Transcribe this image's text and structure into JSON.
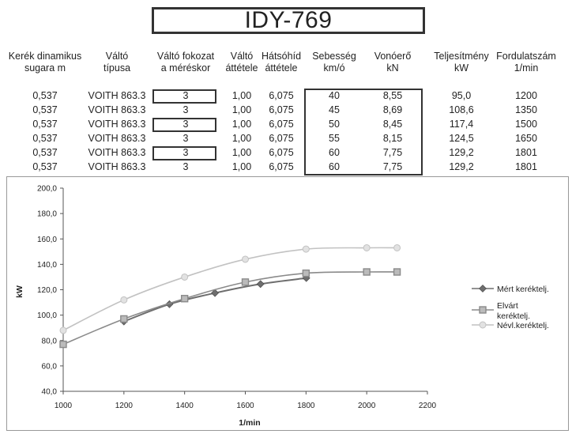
{
  "title": "IDY-769",
  "table": {
    "headers": [
      {
        "l1": "Kerék dinamikus",
        "l2": "sugara          m"
      },
      {
        "l1": "Váltó",
        "l2": "típusa"
      },
      {
        "l1": "Váltó fokozat",
        "l2": "a méréskor"
      },
      {
        "l1": "Váltó",
        "l2": "áttétele"
      },
      {
        "l1": "Hátsóhíd",
        "l2": "áttétele"
      },
      {
        "l1": "Sebesség",
        "l2": "km/ó"
      },
      {
        "l1": "Vonóerő",
        "l2": "kN"
      },
      {
        "l1": "Teljesítmény",
        "l2": "kW"
      },
      {
        "l1": "Fordulatszám",
        "l2": "1/min"
      }
    ],
    "rows": [
      [
        "0,537",
        "VOITH 863.3",
        "3",
        "1,00",
        "6,075",
        "40",
        "8,55",
        "95,0",
        "1200"
      ],
      [
        "0,537",
        "VOITH 863.3",
        "3",
        "1,00",
        "6,075",
        "45",
        "8,69",
        "108,6",
        "1350"
      ],
      [
        "0,537",
        "VOITH 863.3",
        "3",
        "1,00",
        "6,075",
        "50",
        "8,45",
        "117,4",
        "1500"
      ],
      [
        "0,537",
        "VOITH 863.3",
        "3",
        "1,00",
        "6,075",
        "55",
        "8,15",
        "124,5",
        "1650"
      ],
      [
        "0,537",
        "VOITH 863.3",
        "3",
        "1,00",
        "6,075",
        "60",
        "7,75",
        "129,2",
        "1801"
      ],
      [
        "0,537",
        "VOITH 863.3",
        "3",
        "1,00",
        "6,075",
        "60",
        "7,75",
        "129,2",
        "1801"
      ]
    ]
  },
  "colors": {
    "series1": "#6e6e6e",
    "series2": "#8a8a8a",
    "series3": "#c2c2c2",
    "axis": "#555555"
  },
  "chart_data": {
    "type": "line",
    "xlabel": "1/min",
    "ylabel": "kW",
    "xlim": [
      1000,
      2200
    ],
    "ylim": [
      40,
      200
    ],
    "xticks": [
      1000,
      1200,
      1400,
      1600,
      1800,
      2000,
      2200
    ],
    "yticks": [
      40,
      60,
      80,
      100,
      120,
      140,
      160,
      180,
      200
    ],
    "xtick_labels": [
      "1000",
      "1200",
      "1400",
      "1600",
      "1800",
      "2000",
      "2200"
    ],
    "ytick_labels": [
      "40,0",
      "60,0",
      "80,0",
      "100,0",
      "120,0",
      "140,0",
      "160,0",
      "180,0",
      "200,0"
    ],
    "grid": false,
    "legend_position": "right",
    "series": [
      {
        "name": "Mért keréktelj.",
        "marker": "diamond",
        "x": [
          1200,
          1350,
          1500,
          1650,
          1801
        ],
        "y": [
          95.0,
          108.6,
          117.4,
          124.5,
          129.2
        ]
      },
      {
        "name": "Elvárt keréktelj.",
        "marker": "square",
        "x": [
          1000,
          1200,
          1400,
          1600,
          1800,
          2000,
          2100
        ],
        "y": [
          77,
          97,
          113,
          126,
          133,
          134,
          134
        ]
      },
      {
        "name": "Névl.keréktelj.",
        "marker": "circle",
        "x": [
          1000,
          1200,
          1400,
          1600,
          1800,
          2000,
          2100
        ],
        "y": [
          88,
          112,
          130,
          144,
          152,
          153,
          153
        ]
      }
    ]
  }
}
